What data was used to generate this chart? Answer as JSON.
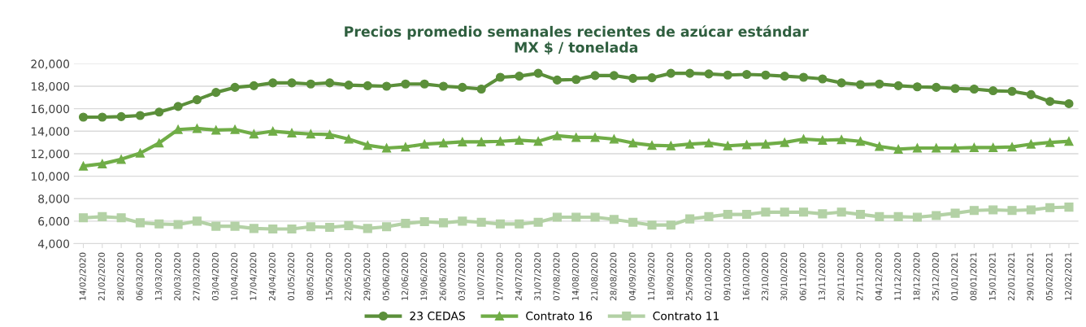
{
  "chart_data": {
    "type": "line",
    "title": "Precios promedio semanales recientes de azúcar estándar\nMX $ / tonelada",
    "categories": [
      "14/02/2020",
      "21/02/2020",
      "28/02/2020",
      "06/03/2020",
      "13/03/2020",
      "20/03/2020",
      "27/03/2020",
      "03/04/2020",
      "10/04/2020",
      "17/04/2020",
      "24/04/2020",
      "01/05/2020",
      "08/05/2020",
      "15/05/2020",
      "22/05/2020",
      "29/05/2020",
      "05/06/2020",
      "12/06/2020",
      "19/06/2020",
      "26/06/2020",
      "03/07/2020",
      "10/07/2020",
      "17/07/2020",
      "24/07/2020",
      "31/07/2020",
      "07/08/2020",
      "14/08/2020",
      "21/08/2020",
      "28/08/2020",
      "04/09/2020",
      "11/09/2020",
      "18/09/2020",
      "25/09/2020",
      "02/10/2020",
      "09/10/2020",
      "16/10/2020",
      "23/10/2020",
      "30/10/2020",
      "06/11/2020",
      "13/11/2020",
      "20/11/2020",
      "27/11/2020",
      "04/12/2020",
      "11/12/2020",
      "18/12/2020",
      "25/12/2020",
      "01/01/2021",
      "08/01/2021",
      "15/01/2021",
      "22/01/2021",
      "29/01/2021",
      "05/02/2021",
      "12/02/2021"
    ],
    "series": [
      {
        "name": "23 CEDAS",
        "color": "#5b8f3a",
        "marker": "circle",
        "values": [
          15250,
          15250,
          15300,
          15400,
          15700,
          16200,
          16800,
          17450,
          17900,
          18050,
          18300,
          18300,
          18200,
          18300,
          18100,
          18050,
          18000,
          18200,
          18200,
          18000,
          17900,
          17750,
          18800,
          18900,
          19150,
          18550,
          18600,
          18950,
          18950,
          18700,
          18750,
          19150,
          19150,
          19100,
          19000,
          19050,
          19000,
          18900,
          18800,
          18650,
          18300,
          18150,
          18200,
          18050,
          17950,
          17900,
          17800,
          17750,
          17600,
          17550,
          17250,
          16650,
          16450
        ]
      },
      {
        "name": "Contrato 16",
        "color": "#70ad47",
        "marker": "triangle",
        "values": [
          10900,
          11100,
          11500,
          12050,
          12950,
          14150,
          14250,
          14100,
          14150,
          13750,
          14000,
          13850,
          13750,
          13700,
          13300,
          12750,
          12500,
          12600,
          12850,
          12950,
          13050,
          13050,
          13100,
          13200,
          13100,
          13600,
          13450,
          13450,
          13300,
          12950,
          12750,
          12700,
          12850,
          12950,
          12700,
          12800,
          12850,
          13000,
          13300,
          13200,
          13250,
          13100,
          12650,
          12400,
          12500,
          12500,
          12500,
          12550,
          12550,
          12600,
          12850,
          13000,
          13100
        ]
      },
      {
        "name": "Contrato 11",
        "color": "#b3d1a5",
        "marker": "square",
        "values": [
          6300,
          6400,
          6300,
          5850,
          5750,
          5700,
          6000,
          5550,
          5550,
          5350,
          5300,
          5300,
          5500,
          5450,
          5600,
          5350,
          5500,
          5800,
          5950,
          5850,
          6000,
          5900,
          5750,
          5750,
          5900,
          6350,
          6350,
          6350,
          6150,
          5900,
          5650,
          5650,
          6200,
          6400,
          6600,
          6600,
          6800,
          6800,
          6800,
          6650,
          6800,
          6600,
          6400,
          6400,
          6350,
          6500,
          6700,
          6950,
          7000,
          6950,
          7000,
          7200,
          7250
        ]
      }
    ],
    "ylim": [
      4000,
      20000
    ],
    "yticks": [
      {
        "value": 4000,
        "label": "4,000"
      },
      {
        "value": 6000,
        "label": "6,000"
      },
      {
        "value": 8000,
        "label": "8,000"
      },
      {
        "value": 10000,
        "label": "10,000"
      },
      {
        "value": 12000,
        "label": "12,000"
      },
      {
        "value": 14000,
        "label": "14,000"
      },
      {
        "value": 16000,
        "label": "16,000"
      },
      {
        "value": 18000,
        "label": "18,000"
      },
      {
        "value": 20000,
        "label": "20,000"
      }
    ],
    "grid": "y",
    "legend": "bottom",
    "line_style": "solid"
  }
}
